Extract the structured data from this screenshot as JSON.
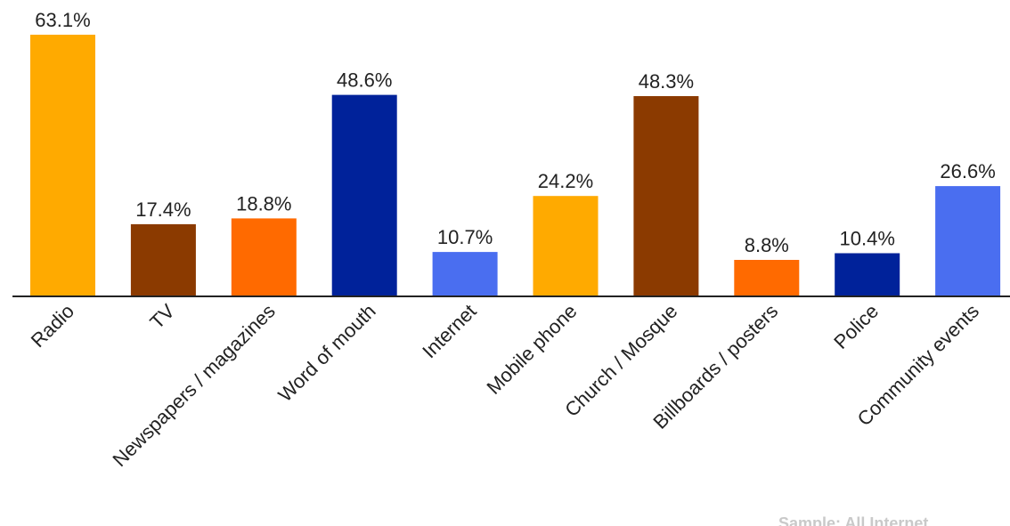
{
  "chart_data": {
    "type": "bar",
    "categories": [
      "Radio",
      "TV",
      "Newspapers / magazines",
      "Word of mouth",
      "Internet",
      "Mobile phone",
      "Church / Mosque",
      "Billboards / posters",
      "Police",
      "Community events"
    ],
    "values": [
      63.1,
      17.4,
      18.8,
      48.6,
      10.7,
      24.2,
      48.3,
      8.8,
      10.4,
      26.6
    ],
    "value_labels": [
      "63.1%",
      "17.4%",
      "18.8%",
      "48.6%",
      "10.7%",
      "24.2%",
      "48.3%",
      "8.8%",
      "10.4%",
      "26.6%"
    ],
    "colors": [
      "#FFAA00",
      "#8B3A00",
      "#FF6A00",
      "#00229A",
      "#4A6EF0",
      "#FFAA00",
      "#8B3A00",
      "#FF6A00",
      "#00229A",
      "#4A6EF0"
    ],
    "title": "",
    "xlabel": "",
    "ylabel": "",
    "ylim": [
      0,
      63.1
    ],
    "grid": false,
    "legend": "none"
  },
  "footer": {
    "sample_note": "Sample: All Internet"
  }
}
